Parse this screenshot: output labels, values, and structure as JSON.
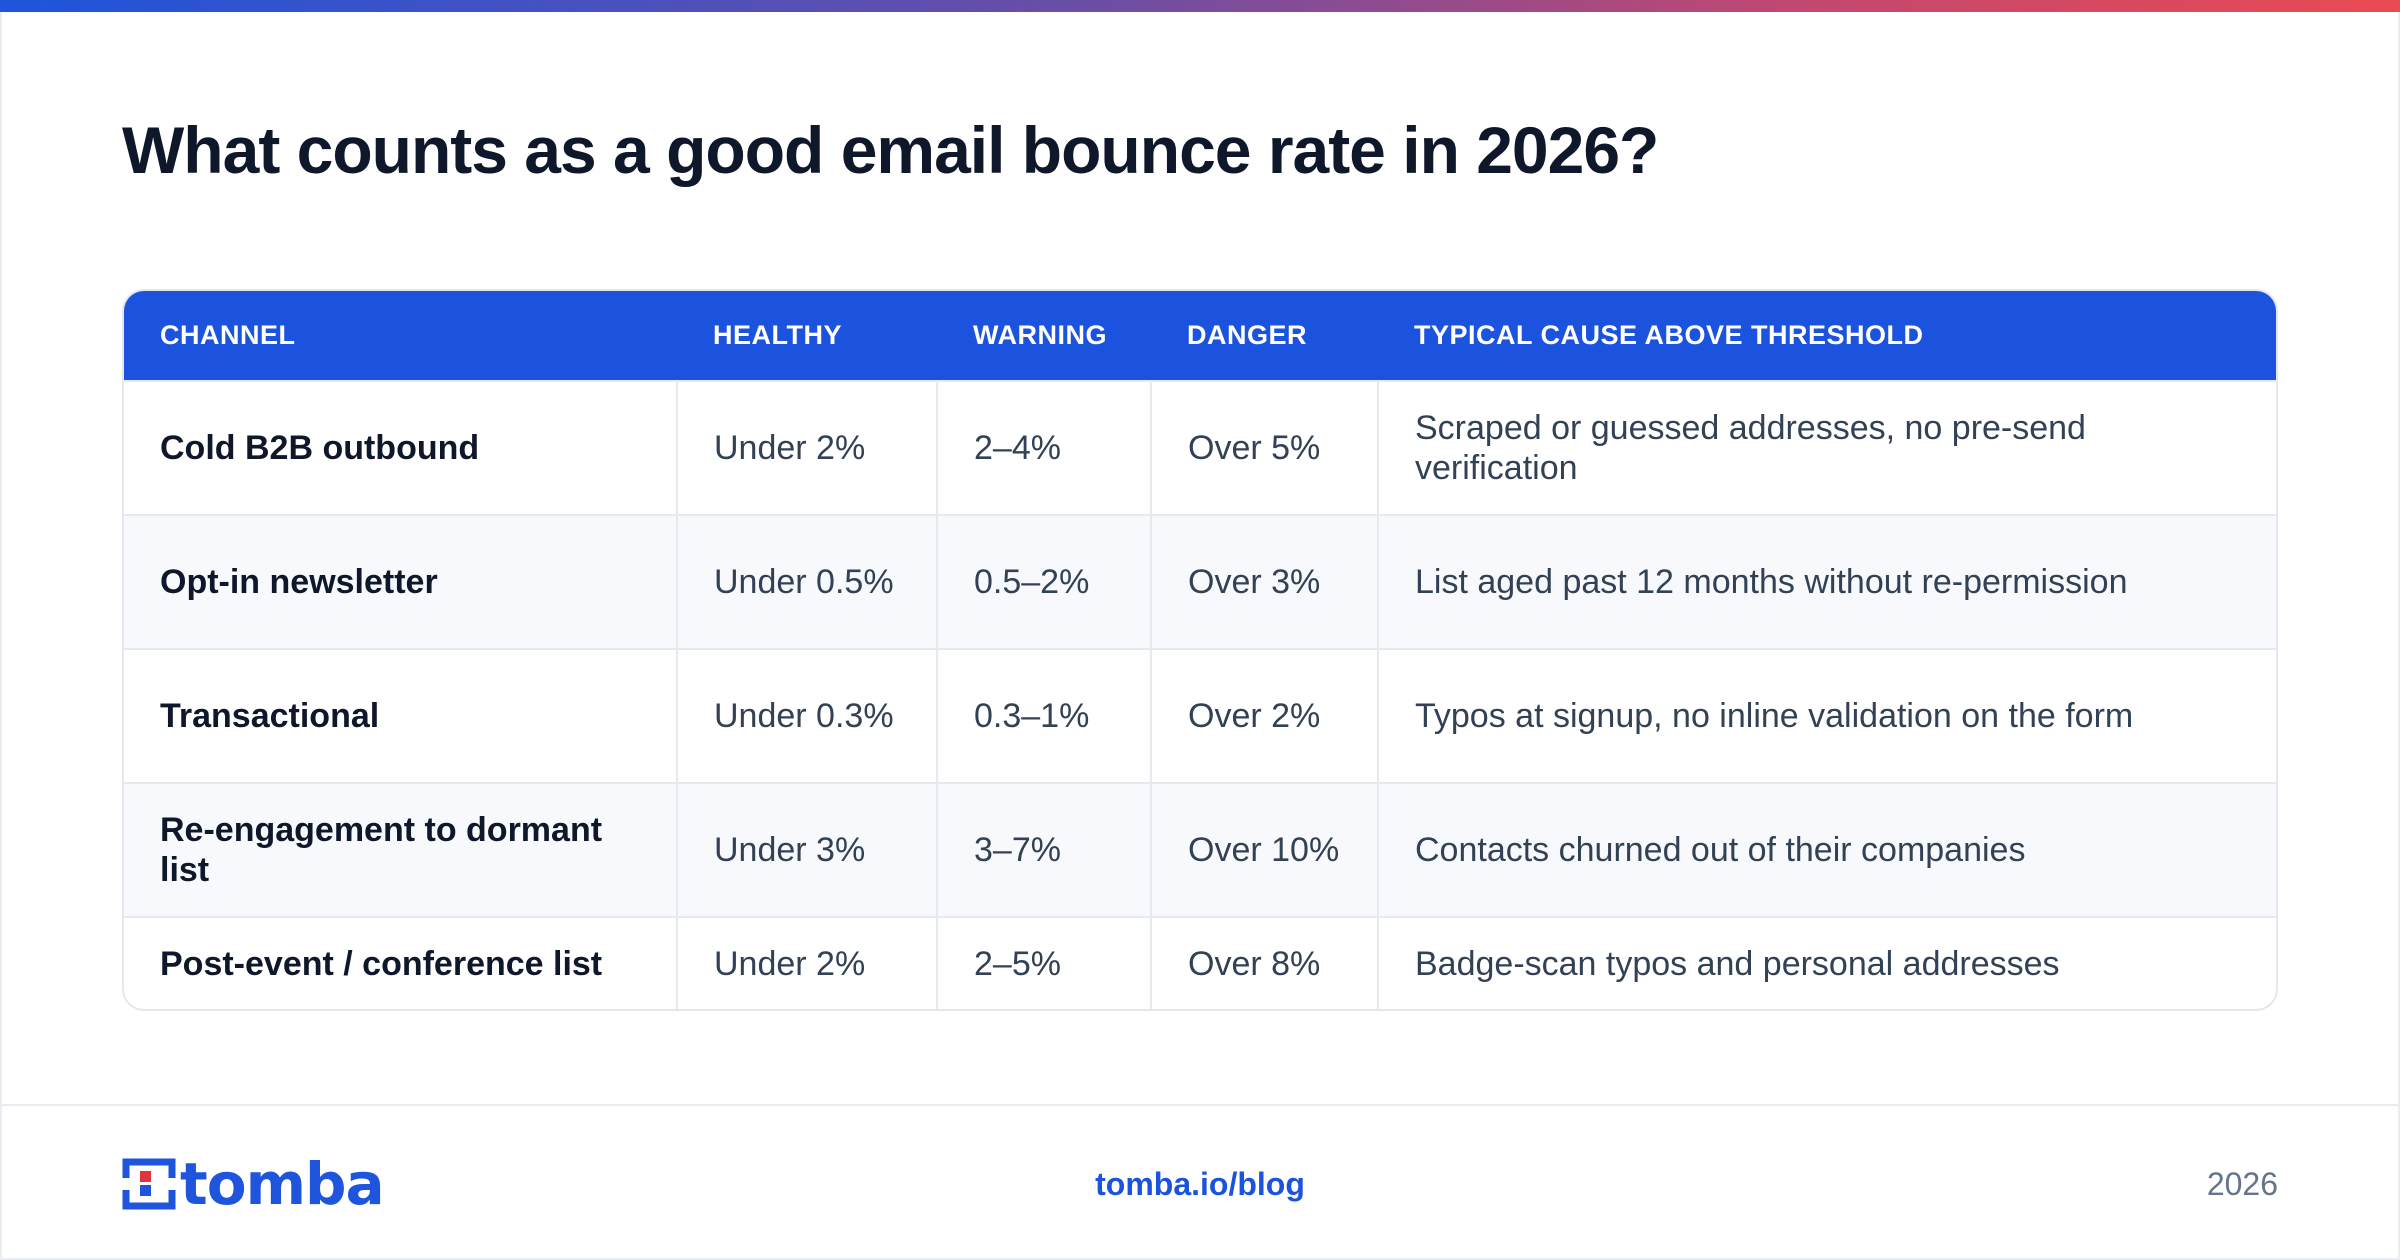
{
  "title": "What counts as a good email bounce rate in 2026?",
  "table": {
    "columns": [
      "CHANNEL",
      "HEALTHY",
      "WARNING",
      "DANGER",
      "TYPICAL CAUSE ABOVE THRESHOLD"
    ],
    "rows": [
      {
        "channel": "Cold B2B outbound",
        "healthy": "Under 2%",
        "warning": "2–4%",
        "danger": "Over 5%",
        "cause": "Scraped or guessed addresses, no pre-send verification"
      },
      {
        "channel": "Opt-in newsletter",
        "healthy": "Under 0.5%",
        "warning": "0.5–2%",
        "danger": "Over 3%",
        "cause": "List aged past 12 months without re-permission"
      },
      {
        "channel": "Transactional",
        "healthy": "Under 0.3%",
        "warning": "0.3–1%",
        "danger": "Over 2%",
        "cause": "Typos at signup, no inline validation on the form"
      },
      {
        "channel": "Re-engagement to dormant list",
        "healthy": "Under 3%",
        "warning": "3–7%",
        "danger": "Over 10%",
        "cause": "Contacts churned out of their companies"
      },
      {
        "channel": "Post-event / conference list",
        "healthy": "Under 2%",
        "warning": "2–5%",
        "danger": "Over 8%",
        "cause": "Badge-scan typos and personal addresses"
      }
    ]
  },
  "footer": {
    "logo_text": "tomba",
    "link": "tomba.io/blog",
    "year": "2026"
  },
  "colors": {
    "brand_blue": "#1c53de",
    "logo_red": "#e2343c"
  }
}
